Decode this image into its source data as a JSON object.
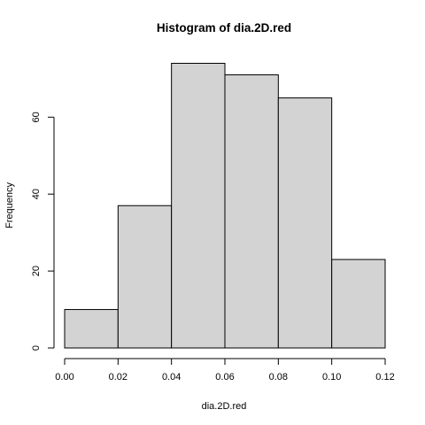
{
  "chart_data": {
    "type": "bar",
    "title": "Histogram of dia.2D.red",
    "xlabel": "dia.2D.red",
    "ylabel": "Frequency",
    "bins": [
      {
        "from": 0.0,
        "to": 0.02,
        "count": 10
      },
      {
        "from": 0.02,
        "to": 0.04,
        "count": 37
      },
      {
        "from": 0.04,
        "to": 0.06,
        "count": 74
      },
      {
        "from": 0.06,
        "to": 0.08,
        "count": 71
      },
      {
        "from": 0.08,
        "to": 0.1,
        "count": 65
      },
      {
        "from": 0.1,
        "to": 0.12,
        "count": 23
      }
    ],
    "xlim": [
      0.0,
      0.12
    ],
    "ylim": [
      0,
      74
    ],
    "xticks": [
      0.0,
      0.02,
      0.04,
      0.06,
      0.08,
      0.1,
      0.12
    ],
    "xtick_labels": [
      "0.00",
      "0.02",
      "0.04",
      "0.06",
      "0.08",
      "0.10",
      "0.12"
    ],
    "yticks": [
      0,
      20,
      40,
      60
    ],
    "ytick_labels": [
      "0",
      "20",
      "40",
      "60"
    ],
    "grid": false,
    "bar_color": "#d3d3d3",
    "edge_color": "#000000"
  }
}
